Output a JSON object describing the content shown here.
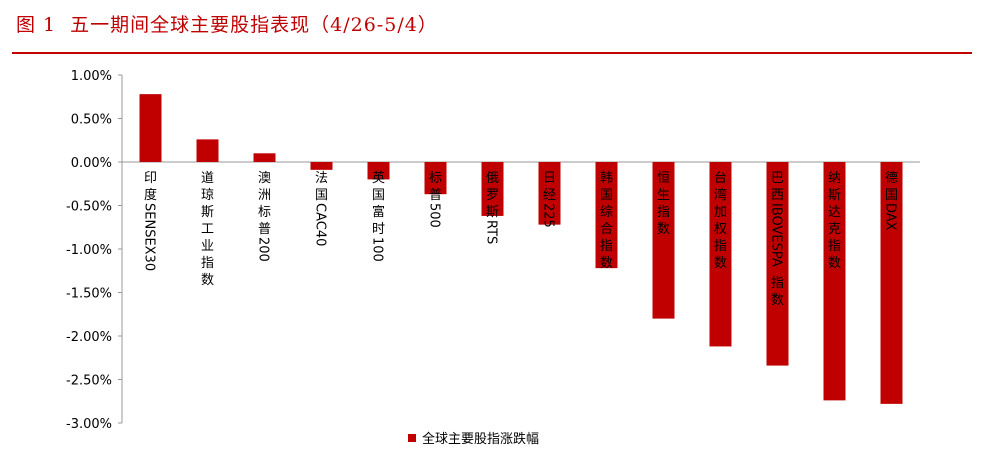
{
  "figure": {
    "number": "图 1",
    "title": "五一期间全球主要股指表现（4/26-5/4）"
  },
  "chart_data": {
    "type": "bar",
    "title": "五一期间全球主要股指表现（4/26-5/4）",
    "categories": [
      "印度SENSEX30",
      "道琼斯工业指数",
      "澳洲标普200",
      "法国CAC40",
      "英国富时100",
      "标普500",
      "俄罗斯RTS",
      "日经225",
      "韩国综合指数",
      "恒生指数",
      "台湾加权指数",
      "巴西IBOVESPA指数",
      "纳斯达克指数",
      "德国DAX"
    ],
    "series": [
      {
        "name": "全球主要股指涨跌幅",
        "color": "#c00000",
        "values": [
          0.78,
          0.26,
          0.1,
          -0.09,
          -0.2,
          -0.37,
          -0.62,
          -0.72,
          -1.22,
          -1.8,
          -2.12,
          -2.34,
          -2.74,
          -2.78
        ]
      }
    ],
    "ylim": [
      -3.0,
      1.0
    ],
    "yticks": [
      1.0,
      0.5,
      0.0,
      -0.5,
      -1.0,
      -1.5,
      -2.0,
      -2.5,
      -3.0
    ],
    "ytick_labels": [
      "1.00%",
      "0.50%",
      "0.00%",
      "-0.50%",
      "-1.00%",
      "-1.50%",
      "-2.00%",
      "-2.50%",
      "-3.00%"
    ],
    "xlabel": "",
    "ylabel": "",
    "legend": {
      "position": "bottom",
      "label": "全球主要股指涨跌幅"
    },
    "grid": false
  }
}
